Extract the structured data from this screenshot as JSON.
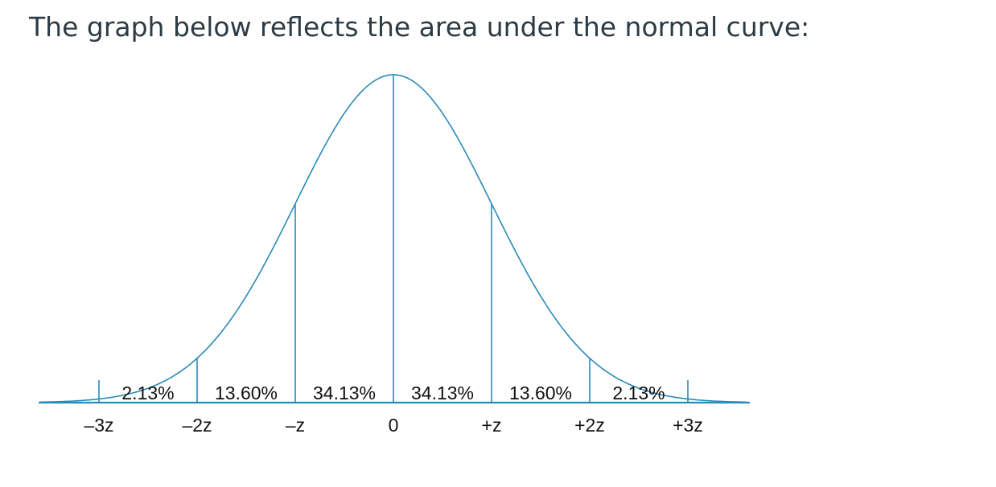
{
  "question": {
    "intro_text": "The graph below reflects the area under the normal curve:"
  },
  "colors": {
    "curve": "#2a8ab8",
    "text": "#111111",
    "heading": "#2d3b45"
  },
  "chart_data": {
    "type": "area",
    "title": "",
    "xlabel": "",
    "ylabel": "",
    "distribution": "standard normal",
    "x_ticks": [
      -3,
      -2,
      -1,
      0,
      1,
      2,
      3
    ],
    "x_tick_labels": [
      "–3z",
      "–2z",
      "–z",
      "0",
      "+z",
      "+2z",
      "+3z"
    ],
    "xlim": [
      -3.6,
      3.6
    ],
    "region_boundaries": [
      -3,
      -2,
      -1,
      0,
      1,
      2,
      3
    ],
    "regions": [
      {
        "from": -3,
        "to": -2,
        "label": "2.13%",
        "value": 2.13
      },
      {
        "from": -2,
        "to": -1,
        "label": "13.60%",
        "value": 13.6
      },
      {
        "from": -1,
        "to": 0,
        "label": "34.13%",
        "value": 34.13
      },
      {
        "from": 0,
        "to": 1,
        "label": "34.13%",
        "value": 34.13
      },
      {
        "from": 1,
        "to": 2,
        "label": "13.60%",
        "value": 13.6
      },
      {
        "from": 2,
        "to": 3,
        "label": "2.13%",
        "value": 2.13
      }
    ]
  }
}
